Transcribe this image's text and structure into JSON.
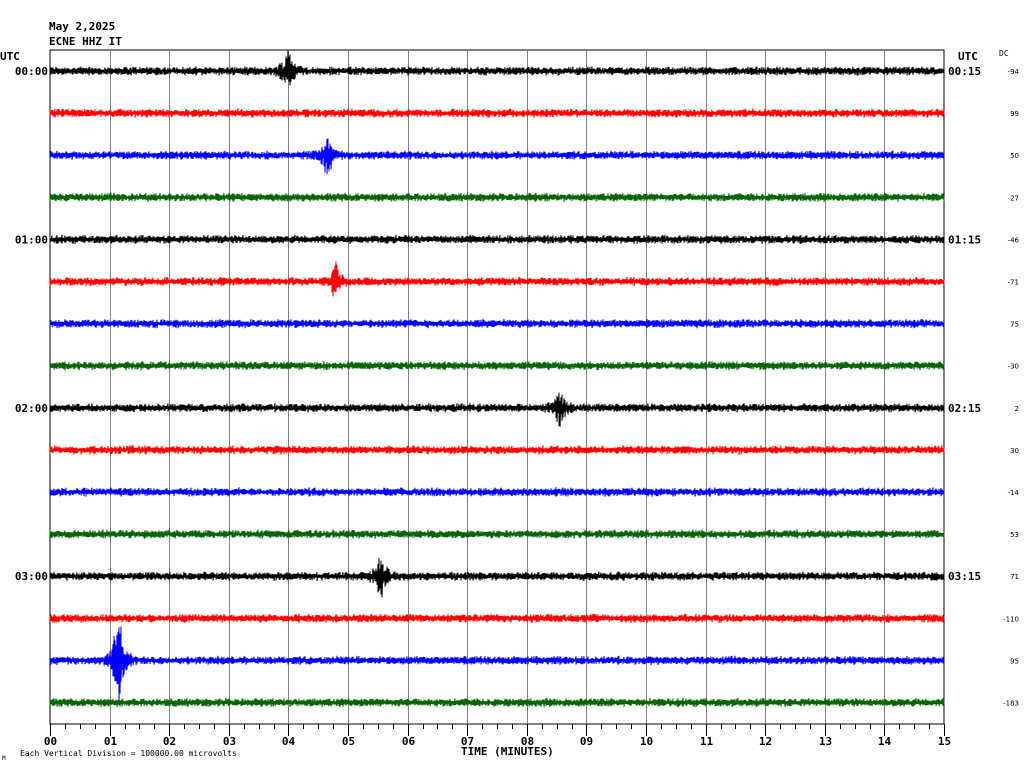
{
  "header": {
    "date": "May 2,2025",
    "station": "ECNE HHZ IT"
  },
  "left_axis_title": "UTC",
  "right_axis_title": "UTC",
  "dc_title": "DC",
  "footer": {
    "left_mark": "M",
    "scale_note": "Each Vertical Division = 100000.00 microvolts"
  },
  "chart_data": {
    "type": "line",
    "subtype": "helicorder",
    "xlabel": "TIME (MINUTES)",
    "x_ticks": [
      "00",
      "01",
      "02",
      "03",
      "04",
      "05",
      "06",
      "07",
      "08",
      "09",
      "10",
      "11",
      "12",
      "13",
      "14",
      "15"
    ],
    "xlim": [
      0,
      15
    ],
    "grid": true,
    "trace_colors": [
      "#000000",
      "#ff0000",
      "#0000ff",
      "#006600"
    ],
    "left_time_labels": [
      {
        "row": 0,
        "label": "00:00"
      },
      {
        "row": 4,
        "label": "01:00"
      },
      {
        "row": 8,
        "label": "02:00"
      },
      {
        "row": 12,
        "label": "03:00"
      }
    ],
    "right_time_labels": [
      {
        "row": 0,
        "label": "00:15"
      },
      {
        "row": 4,
        "label": "01:15"
      },
      {
        "row": 8,
        "label": "02:15"
      },
      {
        "row": 12,
        "label": "03:15"
      }
    ],
    "dc_offsets": [
      "-94",
      "99",
      "50",
      "27",
      "-46",
      "-71",
      "75",
      "-30",
      "2",
      "30",
      "-14",
      "53",
      "71",
      "-110",
      "95",
      "-183"
    ],
    "events": [
      {
        "row": 0,
        "minute": 4.0,
        "amplitude": 1.6
      },
      {
        "row": 2,
        "minute": 4.65,
        "amplitude": 1.3
      },
      {
        "row": 5,
        "minute": 4.8,
        "amplitude": 1.2
      },
      {
        "row": 12,
        "minute": 5.55,
        "amplitude": 1.5
      },
      {
        "row": 14,
        "minute": 1.15,
        "amplitude": 3.2
      },
      {
        "row": 8,
        "minute": 8.55,
        "amplitude": 1.1
      }
    ]
  }
}
